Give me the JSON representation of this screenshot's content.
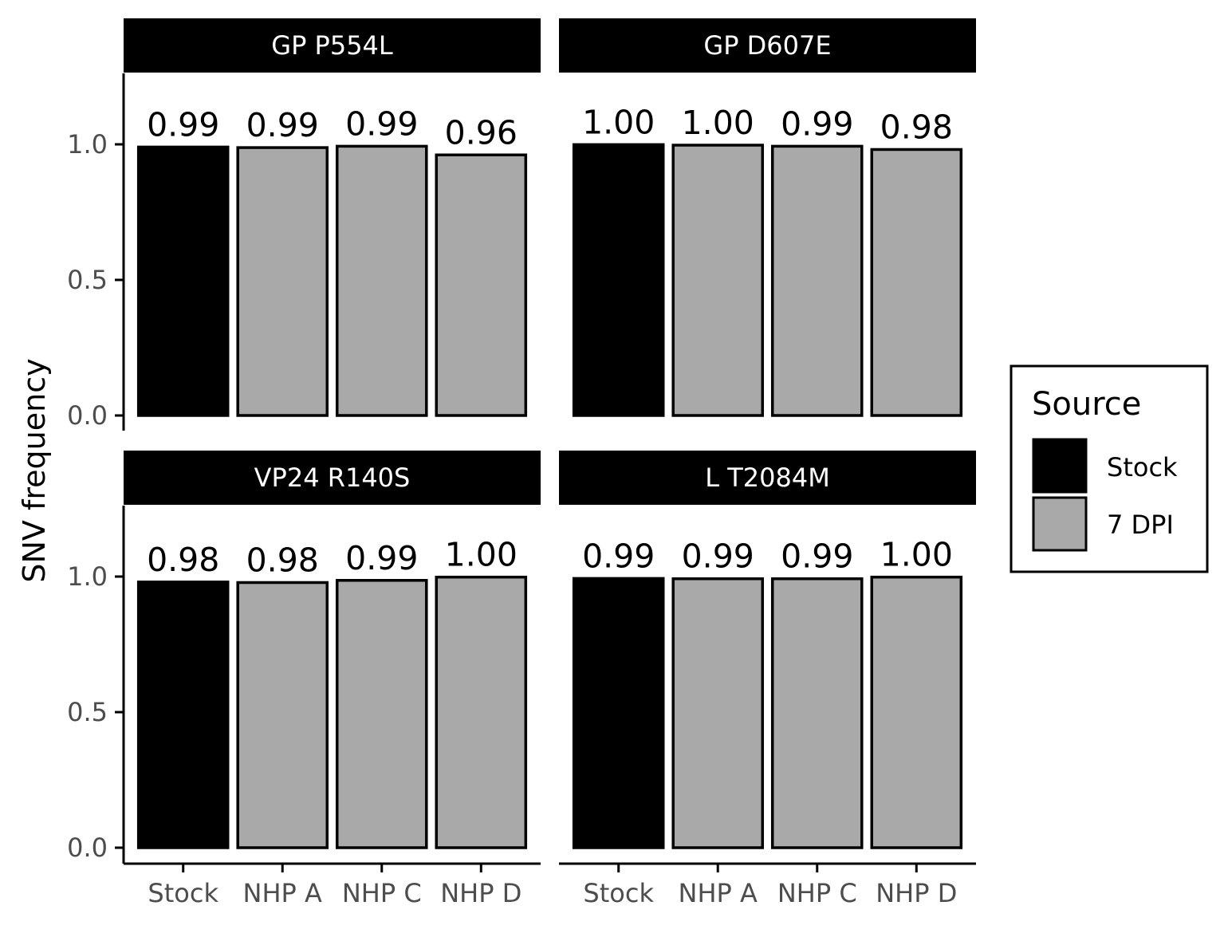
{
  "chart_data": {
    "type": "bar",
    "ylabel": "SNV frequency",
    "xlabel": "",
    "ylim": [
      0,
      1.25
    ],
    "yticks": [
      0.0,
      0.5,
      1.0
    ],
    "ytick_labels": [
      "0.0",
      "0.5",
      "1.0"
    ],
    "categories": [
      "Stock",
      "NHP A",
      "NHP C",
      "NHP D"
    ],
    "category_source": [
      "Stock",
      "7 DPI",
      "7 DPI",
      "7 DPI"
    ],
    "legend": {
      "title": "Source",
      "position": "right",
      "entries": [
        {
          "label": "Stock",
          "color": "#000000"
        },
        {
          "label": "7 DPI",
          "color": "#a9a9a9"
        }
      ]
    },
    "panels": [
      {
        "title": "GP P554L",
        "values": [
          0.99,
          0.988,
          0.993,
          0.961
        ],
        "labels": [
          "0.99",
          "0.99",
          "0.99",
          "0.96"
        ]
      },
      {
        "title": "GP D607E",
        "values": [
          0.999,
          0.997,
          0.993,
          0.981
        ],
        "labels": [
          "1.00",
          "1.00",
          "0.99",
          "0.98"
        ]
      },
      {
        "title": "VP24 R140S",
        "values": [
          0.98,
          0.978,
          0.986,
          0.998
        ],
        "labels": [
          "0.98",
          "0.98",
          "0.99",
          "1.00"
        ]
      },
      {
        "title": "L T2084M",
        "values": [
          0.993,
          0.992,
          0.992,
          0.998
        ],
        "labels": [
          "0.99",
          "0.99",
          "0.99",
          "1.00"
        ]
      }
    ],
    "grid": false
  },
  "colors": {
    "strip_background": "#000000",
    "strip_text": "#ffffff",
    "stock_fill": "#000000",
    "dpi_fill": "#a9a9a9",
    "bar_outline": "#000000",
    "tick_label": "#4d4d4d"
  }
}
